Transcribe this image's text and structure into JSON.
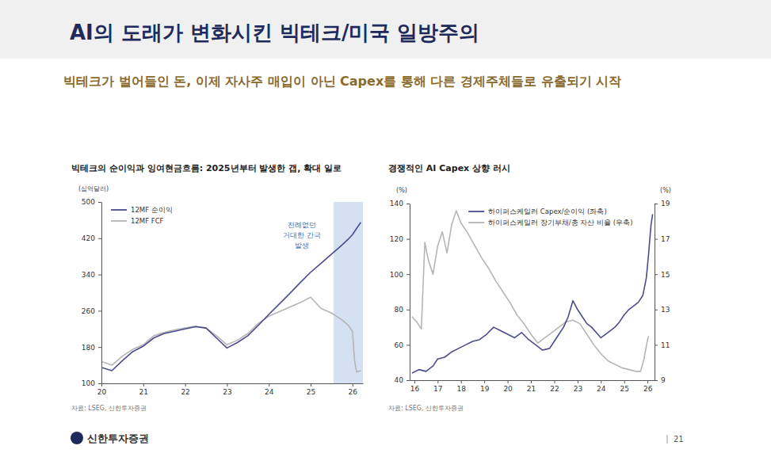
{
  "slide": {
    "title": "AI의 도래가 변화시킨 빅테크/미국 일방주의",
    "subtitle": "빅테크가 벌어들인 돈, 이제 자사주 매입이 아닌 Capex를 통해 다른 경제주체들로 유출되기 시작",
    "brand": "신한투자증권",
    "page": 21
  },
  "chart_data": [
    {
      "type": "line",
      "title": "빅테크의 순이익과 잉여현금흐름: 2025년부터 발생한 갭, 확대 일로",
      "y_label": "(십억달러)",
      "source": "자료: LSEG, 신한투자증권",
      "x": [
        2020.0,
        2020.25,
        2020.5,
        2020.75,
        2021.0,
        2021.25,
        2021.5,
        2021.75,
        2022.0,
        2022.25,
        2022.5,
        2022.75,
        2023.0,
        2023.25,
        2023.5,
        2023.75,
        2024.0,
        2024.25,
        2024.5,
        2024.75,
        2025.0,
        2025.25,
        2025.5,
        2025.75,
        2025.9,
        2026.0,
        2026.05,
        2026.1,
        2026.2
      ],
      "xlim": [
        2020,
        2026.25
      ],
      "xticks": [
        {
          "value": 2020,
          "label": "20"
        },
        {
          "value": 2021,
          "label": "21"
        },
        {
          "value": 2022,
          "label": "22"
        },
        {
          "value": 2023,
          "label": "23"
        },
        {
          "value": 2024,
          "label": "24"
        },
        {
          "value": 2025,
          "label": "25"
        },
        {
          "value": 2026,
          "label": "26"
        }
      ],
      "ylim": [
        100,
        500
      ],
      "yticks": [
        100,
        180,
        260,
        340,
        420,
        500
      ],
      "grid": false,
      "legend": "upper left",
      "series": [
        {
          "name": "12MF 순이익",
          "color": "#4b4b8f",
          "values": [
            135,
            128,
            150,
            170,
            182,
            200,
            210,
            215,
            220,
            225,
            222,
            200,
            178,
            190,
            205,
            228,
            252,
            275,
            298,
            322,
            345,
            365,
            385,
            405,
            418,
            428,
            435,
            442,
            455
          ]
        },
        {
          "name": "12MF FCF",
          "color": "#b5b5b5",
          "values": [
            148,
            140,
            160,
            175,
            185,
            205,
            212,
            218,
            222,
            226,
            222,
            205,
            185,
            195,
            210,
            232,
            248,
            258,
            268,
            278,
            290,
            265,
            255,
            240,
            228,
            215,
            150,
            125,
            128
          ]
        }
      ],
      "annotations": [
        {
          "text": [
            "전례없던",
            "거대한 간극",
            "발생"
          ],
          "x_range": [
            2025.55,
            2026.25
          ],
          "color": "#3f73b8"
        }
      ]
    },
    {
      "type": "line",
      "title": "경쟁적인 AI Capex 상향 러시",
      "y_label": "(%)",
      "y2_label": "(%)",
      "source": "자료: LSEG, 신한투자증권",
      "xlim": [
        2015.8,
        2026.3
      ],
      "xticks": [
        {
          "value": 2016,
          "label": "16"
        },
        {
          "value": 2017,
          "label": "17"
        },
        {
          "value": 2018,
          "label": "18"
        },
        {
          "value": 2019,
          "label": "19"
        },
        {
          "value": 2020,
          "label": "20"
        },
        {
          "value": 2021,
          "label": "21"
        },
        {
          "value": 2022,
          "label": "22"
        },
        {
          "value": 2023,
          "label": "23"
        },
        {
          "value": 2024,
          "label": "24"
        },
        {
          "value": 2025,
          "label": "25"
        },
        {
          "value": 2026,
          "label": "26"
        }
      ],
      "ylim": [
        40,
        140
      ],
      "yticks": [
        40,
        60,
        80,
        100,
        120,
        140
      ],
      "y2lim": [
        9,
        19
      ],
      "y2ticks": [
        9,
        11,
        13,
        15,
        17,
        19
      ],
      "grid": false,
      "legend": "upper center",
      "series": [
        {
          "name": "하이퍼스케일러 Capex/순이익 (좌축)",
          "color": "#4b4b8f",
          "axis": "y",
          "x": [
            2015.9,
            2016.2,
            2016.5,
            2016.8,
            2017.0,
            2017.3,
            2017.6,
            2017.9,
            2018.2,
            2018.5,
            2018.8,
            2019.1,
            2019.4,
            2019.7,
            2020.0,
            2020.3,
            2020.6,
            2020.9,
            2021.2,
            2021.5,
            2021.8,
            2022.0,
            2022.2,
            2022.4,
            2022.6,
            2022.8,
            2023.0,
            2023.2,
            2023.4,
            2023.6,
            2023.8,
            2024.0,
            2024.2,
            2024.4,
            2024.6,
            2024.8,
            2025.0,
            2025.2,
            2025.4,
            2025.6,
            2025.8,
            2025.95,
            2026.05,
            2026.15,
            2026.22
          ],
          "values": [
            44,
            46,
            45,
            48,
            52,
            53,
            56,
            58,
            60,
            62,
            63,
            66,
            70,
            68,
            66,
            64,
            67,
            63,
            60,
            57,
            58,
            62,
            66,
            70,
            76,
            85,
            80,
            76,
            72,
            70,
            67,
            64,
            66,
            68,
            70,
            73,
            77,
            80,
            82,
            84,
            88,
            98,
            112,
            128,
            134
          ]
        },
        {
          "name": "하이퍼스케일러 장기부채/총 자산 비율 (우축)",
          "color": "#b5b5b5",
          "axis": "y2",
          "x": [
            2015.9,
            2016.1,
            2016.3,
            2016.45,
            2016.6,
            2016.8,
            2017.0,
            2017.2,
            2017.4,
            2017.6,
            2017.8,
            2018.0,
            2018.3,
            2018.6,
            2018.9,
            2019.2,
            2019.5,
            2019.8,
            2020.1,
            2020.4,
            2020.7,
            2021.0,
            2021.3,
            2021.6,
            2021.9,
            2022.2,
            2022.5,
            2022.8,
            2023.1,
            2023.4,
            2023.7,
            2024.0,
            2024.3,
            2024.6,
            2024.9,
            2025.2,
            2025.5,
            2025.7,
            2025.85,
            2026.0,
            2026.05
          ],
          "values": [
            12.6,
            12.3,
            11.9,
            16.8,
            15.8,
            15.0,
            16.6,
            17.4,
            16.2,
            17.8,
            18.6,
            17.9,
            17.3,
            16.6,
            15.9,
            15.3,
            14.6,
            14.0,
            13.4,
            12.7,
            12.2,
            11.6,
            11.1,
            11.4,
            11.7,
            12.0,
            12.3,
            12.4,
            12.2,
            11.6,
            11.0,
            10.5,
            10.1,
            9.9,
            9.7,
            9.6,
            9.5,
            9.5,
            10.2,
            11.3,
            11.5
          ]
        }
      ]
    }
  ]
}
